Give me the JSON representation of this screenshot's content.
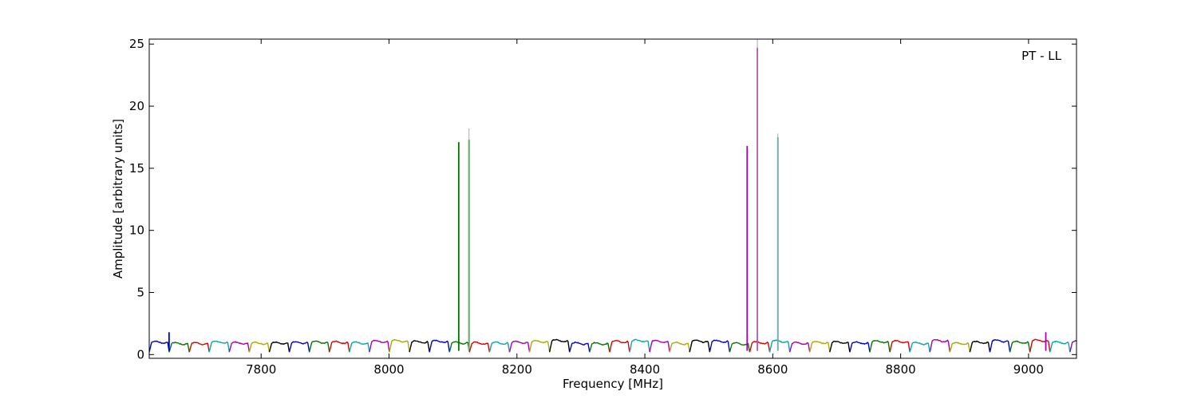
{
  "chart_data": {
    "type": "line",
    "title": "",
    "annotation": "PT - LL",
    "xlabel": "Frequency [MHz]",
    "ylabel": "Amplitude [arbitrary units]",
    "xlim": [
      7625,
      9075
    ],
    "ylim": [
      -0.3,
      25.4
    ],
    "xticks": [
      7800,
      8000,
      8200,
      8400,
      8600,
      8800,
      9000
    ],
    "yticks": [
      0,
      5,
      10,
      15,
      20,
      25
    ],
    "grid": false,
    "legend": "none",
    "band_start": 7625,
    "band_width": 31.3,
    "colors": [
      "#0000cc",
      "#007700",
      "#dd0000",
      "#00aaaa",
      "#aa00aa",
      "#aaaa00",
      "#000000"
    ],
    "spikes": [
      {
        "x": 8109,
        "y": 17.1,
        "color": "#007700"
      },
      {
        "x": 8125,
        "y": 17.3,
        "color": "#007700"
      },
      {
        "x": 8125,
        "y": 18.2,
        "color": "#aaaaaa"
      },
      {
        "x": 8560,
        "y": 16.8,
        "color": "#aa00aa"
      },
      {
        "x": 8576,
        "y": 24.7,
        "color": "#aa00aa"
      },
      {
        "x": 8576,
        "y": 25.4,
        "color": "#aaaaaa"
      },
      {
        "x": 8608,
        "y": 17.5,
        "color": "#00aaaa"
      },
      {
        "x": 8608,
        "y": 17.8,
        "color": "#aaaaaa"
      },
      {
        "x": 9027,
        "y": 1.8,
        "color": "#aa00aa"
      },
      {
        "x": 7656,
        "y": 1.8,
        "color": "#0000cc"
      }
    ]
  }
}
